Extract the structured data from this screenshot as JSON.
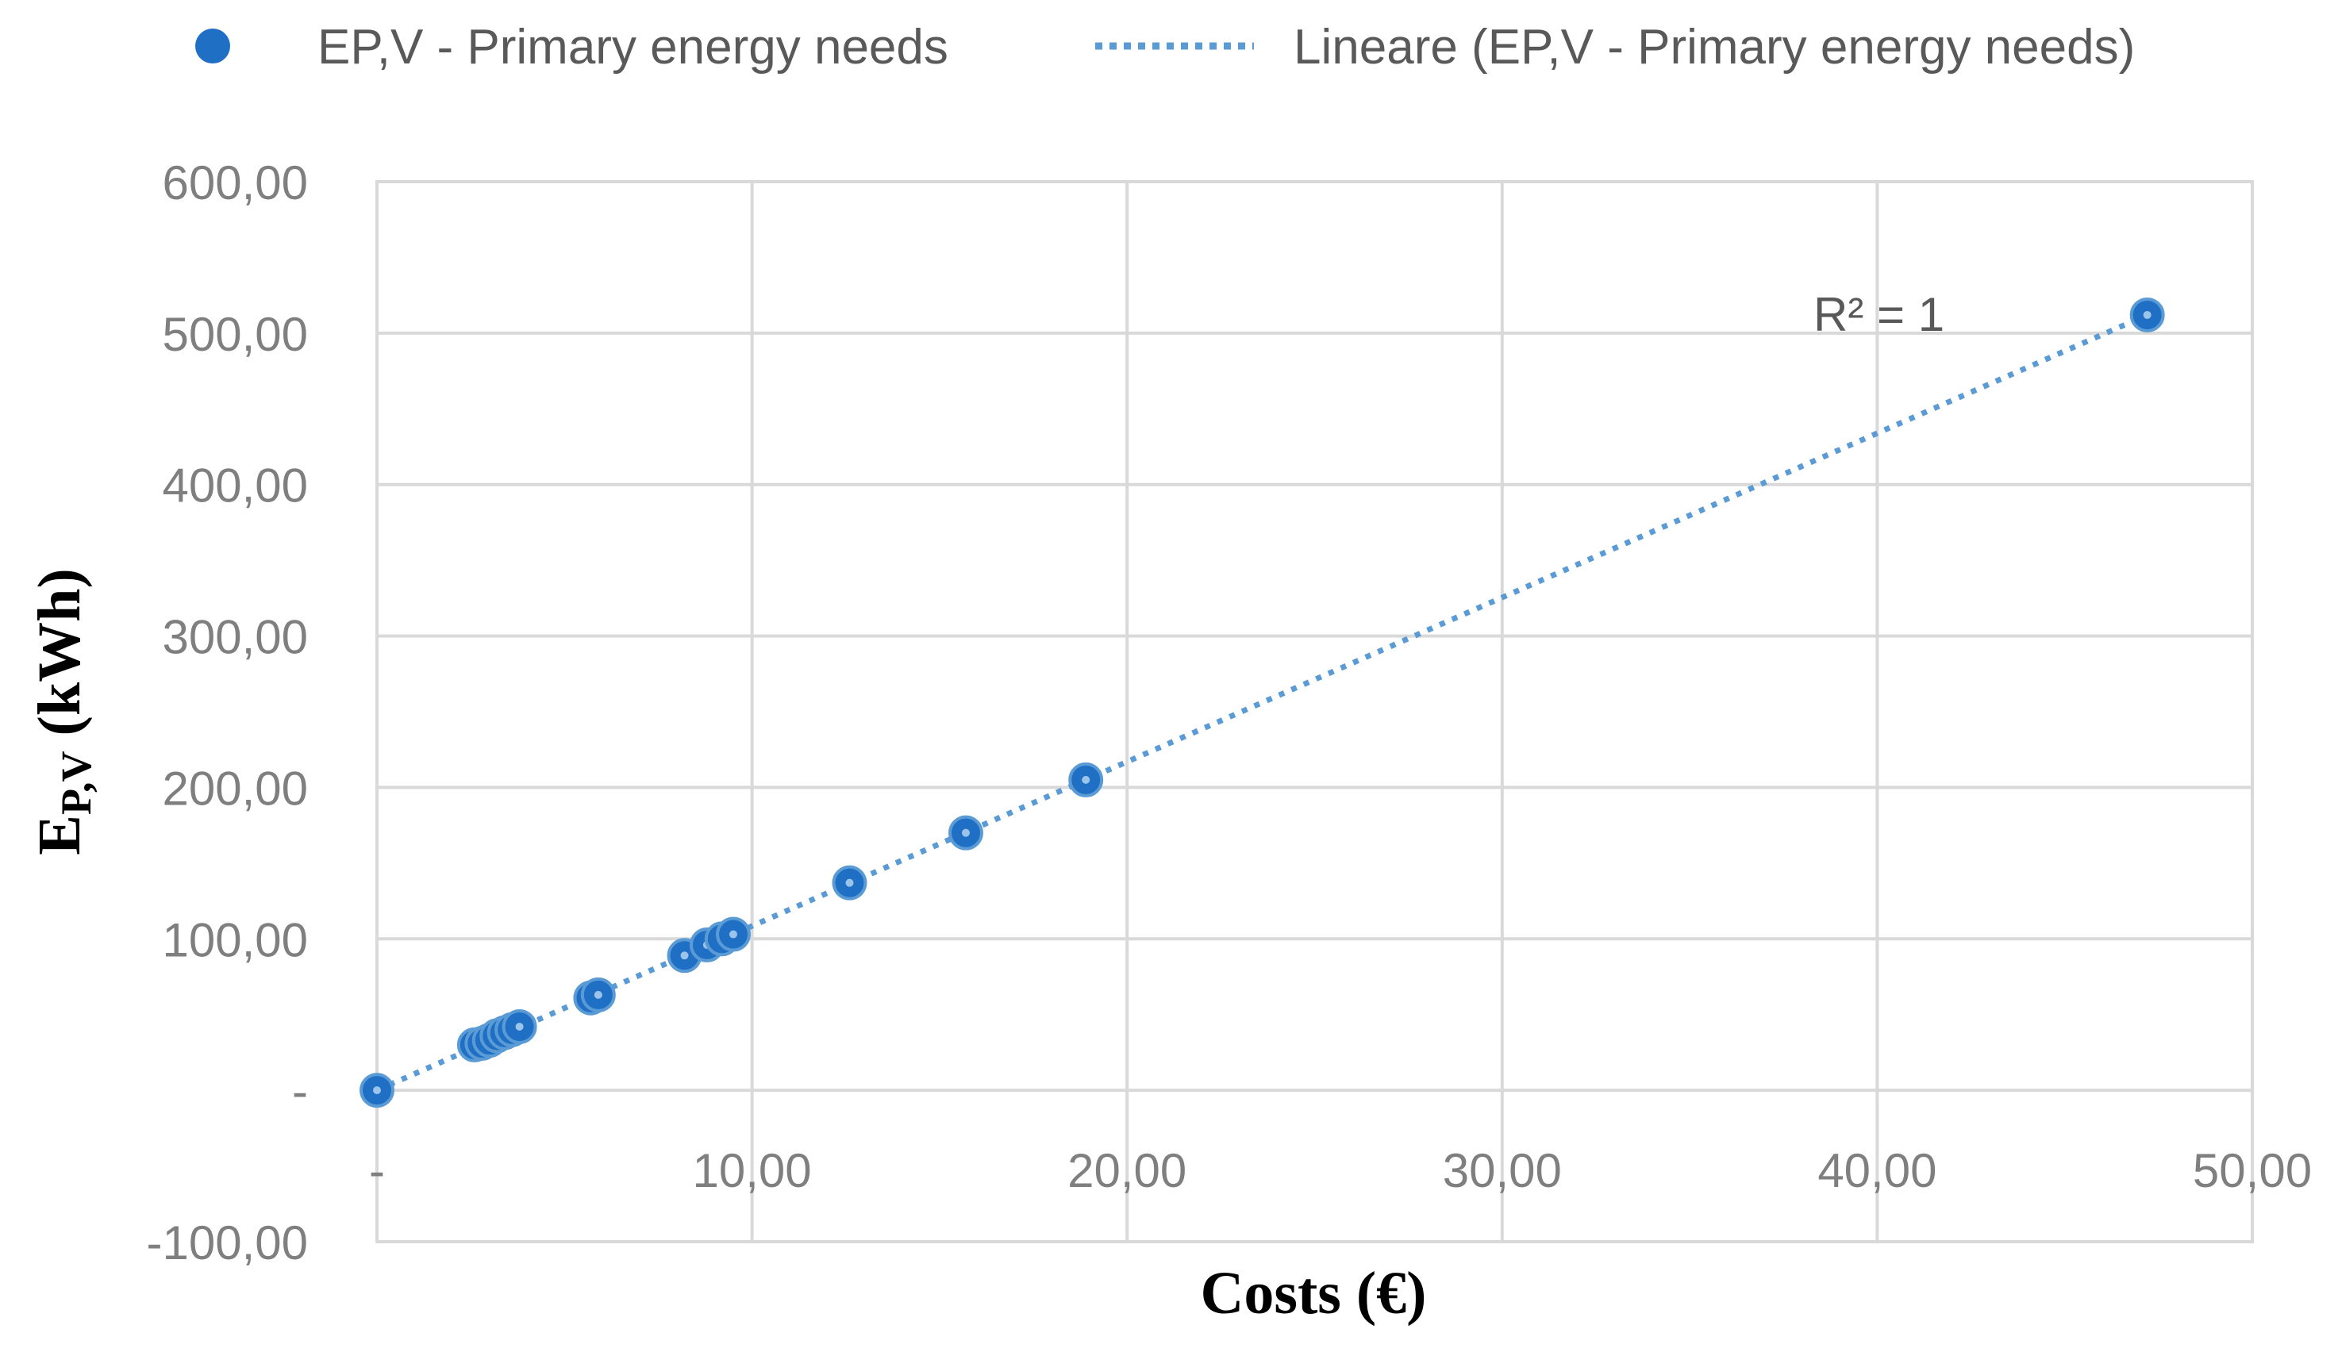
{
  "chart_data": {
    "type": "scatter",
    "title": "",
    "series": [
      {
        "name": "EP,V - Primary energy needs",
        "marker": "circle",
        "color": "#1f6fc5",
        "points": [
          [
            0.0,
            0.0
          ],
          [
            2.6,
            30.0
          ],
          [
            2.8,
            31.0
          ],
          [
            3.0,
            33.0
          ],
          [
            3.2,
            36.0
          ],
          [
            3.4,
            38.0
          ],
          [
            3.6,
            40.0
          ],
          [
            3.8,
            42.0
          ],
          [
            5.7,
            61.0
          ],
          [
            5.9,
            63.0
          ],
          [
            8.2,
            89.0
          ],
          [
            8.8,
            96.0
          ],
          [
            9.2,
            100.0
          ],
          [
            9.5,
            103.0
          ],
          [
            12.6,
            137.0
          ],
          [
            15.7,
            170.0
          ],
          [
            18.9,
            205.0
          ],
          [
            47.2,
            512.0
          ]
        ]
      }
    ],
    "trendline": {
      "name": "Lineare (EP,V - Primary energy needs)",
      "style": "dotted",
      "color": "#5b9bd5",
      "from": [
        0.0,
        0.0
      ],
      "to": [
        47.2,
        512.0
      ],
      "label": "R² = 1"
    },
    "xlabel": "Costs (€)",
    "ylabel_main": "E",
    "ylabel_sub": "P,V",
    "ylabel_unit": " (kWh)",
    "xlim": [
      0,
      50
    ],
    "ylim": [
      -100,
      600
    ],
    "xticks": [
      {
        "v": 0,
        "label": "-"
      },
      {
        "v": 10,
        "label": "10,00"
      },
      {
        "v": 20,
        "label": "20,00"
      },
      {
        "v": 30,
        "label": "30,00"
      },
      {
        "v": 40,
        "label": "40,00"
      },
      {
        "v": 50,
        "label": "50,00"
      }
    ],
    "yticks": [
      {
        "v": -100,
        "label": "-100,00"
      },
      {
        "v": 0,
        "label": "-"
      },
      {
        "v": 100,
        "label": "100,00"
      },
      {
        "v": 200,
        "label": "200,00"
      },
      {
        "v": 300,
        "label": "300,00"
      },
      {
        "v": 400,
        "label": "400,00"
      },
      {
        "v": 500,
        "label": "500,00"
      },
      {
        "v": 600,
        "label": "600,00"
      }
    ],
    "grid": true,
    "legend_position": "top"
  }
}
